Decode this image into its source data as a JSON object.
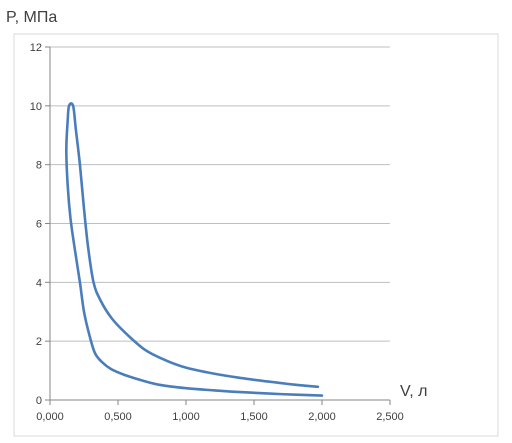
{
  "chart_data": {
    "type": "line",
    "title": "",
    "xlabel": "V, л",
    "ylabel": "P, МПа",
    "xlim": [
      0,
      2.5
    ],
    "ylim": [
      0,
      12
    ],
    "x_ticks": [
      "0,000",
      "0,500",
      "1,000",
      "1,500",
      "2,000",
      "2,500"
    ],
    "y_ticks": [
      "0",
      "2",
      "4",
      "6",
      "8",
      "10",
      "12"
    ],
    "grid": "horizontal",
    "legend": "none",
    "series": [
      {
        "color": "#4a7ebb",
        "points": [
          [
            2.0,
            0.15
          ],
          [
            1.7,
            0.2
          ],
          [
            1.4,
            0.27
          ],
          [
            1.2,
            0.33
          ],
          [
            1.0,
            0.4
          ],
          [
            0.8,
            0.52
          ],
          [
            0.65,
            0.7
          ],
          [
            0.55,
            0.85
          ],
          [
            0.45,
            1.05
          ],
          [
            0.38,
            1.3
          ],
          [
            0.33,
            1.6
          ],
          [
            0.29,
            2.2
          ],
          [
            0.25,
            3.0
          ],
          [
            0.22,
            4.0
          ],
          [
            0.18,
            5.2
          ],
          [
            0.15,
            6.2
          ],
          [
            0.13,
            7.3
          ],
          [
            0.12,
            8.5
          ],
          [
            0.13,
            9.5
          ],
          [
            0.14,
            10.0
          ],
          [
            0.17,
            10.0
          ],
          [
            0.19,
            9.2
          ],
          [
            0.22,
            8.0
          ],
          [
            0.25,
            6.5
          ],
          [
            0.28,
            5.2
          ],
          [
            0.32,
            4.0
          ],
          [
            0.37,
            3.4
          ],
          [
            0.45,
            2.8
          ],
          [
            0.55,
            2.3
          ],
          [
            0.7,
            1.7
          ],
          [
            0.85,
            1.35
          ],
          [
            1.0,
            1.1
          ],
          [
            1.2,
            0.9
          ],
          [
            1.4,
            0.75
          ],
          [
            1.6,
            0.63
          ],
          [
            1.8,
            0.52
          ],
          [
            1.97,
            0.45
          ]
        ]
      }
    ]
  }
}
